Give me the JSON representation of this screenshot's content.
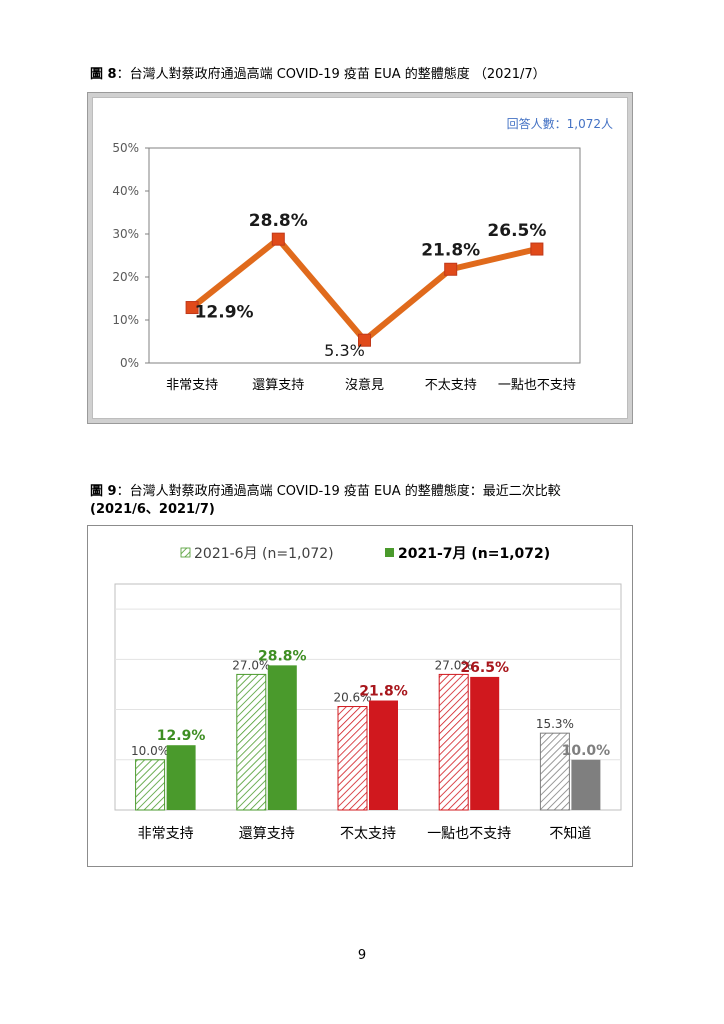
{
  "fig8": {
    "title_label": "圖 8",
    "title_text": "：台灣人對蔡政府通過高端 COVID-19 疫苗 EUA 的整體態度 （2021/7）",
    "respondents": "回答人數：1,072人"
  },
  "fig9": {
    "title_label": "圖 9",
    "title_text": "：台灣人對蔡政府通過高端 COVID-19 疫苗 EUA 的整體態度：最近二次比較",
    "title_line2": "(2021/6、2021/7)"
  },
  "page_number": "9",
  "colors": {
    "line_orange": "#E06A1C",
    "marker_red": "#E04A1A",
    "green": "#4A9A2C",
    "red": "#D0181E",
    "gray": "#7F7F7F",
    "respondents_blue": "#4472C4"
  },
  "chart_data": [
    {
      "type": "line",
      "categories": [
        "非常支持",
        "還算支持",
        "沒意見",
        "不太支持",
        "一點也不支持"
      ],
      "values": [
        12.9,
        28.8,
        5.3,
        21.8,
        26.5
      ],
      "data_labels": [
        "12.9%",
        "28.8%",
        "5.3%",
        "21.8%",
        "26.5%"
      ],
      "ylim": [
        0,
        50
      ],
      "yticks": [
        "0%",
        "10%",
        "20%",
        "30%",
        "40%",
        "50%"
      ],
      "title": "",
      "xlabel": "",
      "ylabel": "",
      "grid": false
    },
    {
      "type": "bar",
      "categories": [
        "非常支持",
        "還算支持",
        "不太支持",
        "一點也不支持",
        "不知道"
      ],
      "series": [
        {
          "name": "2021-6月 (n=1,072)",
          "values": [
            10.0,
            27.0,
            20.6,
            27.0,
            15.3
          ],
          "labels": [
            "10.0%",
            "27.0%",
            "20.6%",
            "27.0%",
            "15.3%"
          ],
          "style": "hatched"
        },
        {
          "name": "2021-7月 (n=1,072)",
          "values": [
            12.9,
            28.8,
            21.8,
            26.5,
            10.0
          ],
          "labels": [
            "12.9%",
            "28.8%",
            "21.8%",
            "26.5%",
            "10.0%"
          ],
          "style": "solid"
        }
      ],
      "category_colors": [
        "green",
        "green",
        "red",
        "red",
        "gray"
      ],
      "ylim": [
        0,
        45
      ],
      "grid": true,
      "legend": "top",
      "title": "",
      "xlabel": "",
      "ylabel": ""
    }
  ]
}
